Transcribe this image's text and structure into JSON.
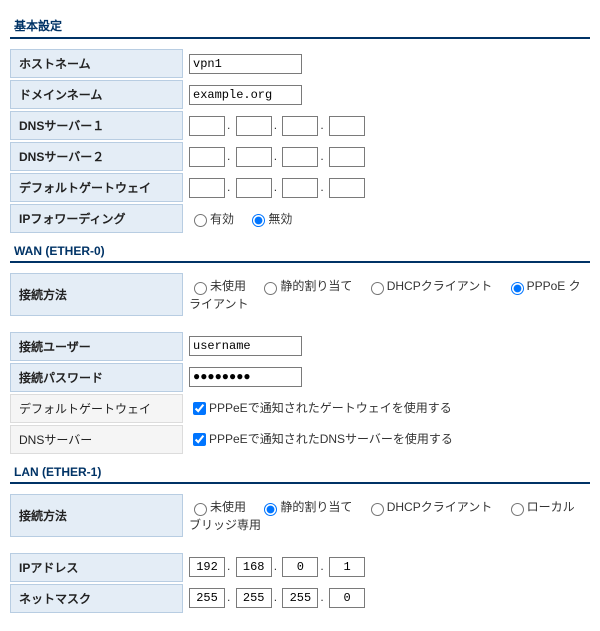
{
  "sections": {
    "basic": "基本設定",
    "wan": "WAN (ETHER-0)",
    "lan": "LAN (ETHER-1)"
  },
  "basic": {
    "hostname_label": "ホストネーム",
    "hostname": "vpn1",
    "domain_label": "ドメインネーム",
    "domain": "example.org",
    "dns1_label": "DNSサーバー１",
    "dns1": [
      "",
      "",
      "",
      ""
    ],
    "dns2_label": "DNSサーバー２",
    "dns2": [
      "",
      "",
      "",
      ""
    ],
    "gw_label": "デフォルトゲートウェイ",
    "gw": [
      "",
      "",
      "",
      ""
    ],
    "ipfw_label": "IPフォワーディング",
    "ipfw_enable": "有効",
    "ipfw_disable": "無効"
  },
  "wan": {
    "method_label": "接続方法",
    "method_unused": "未使用",
    "method_static": "静的割り当て",
    "method_dhcp": "DHCPクライアント",
    "method_pppoe": "PPPoE クライアント",
    "user_label": "接続ユーザー",
    "user": "username",
    "pass_label": "接続パスワード",
    "pass": "●●●●●●●●",
    "gw_label": "デフォルトゲートウェイ",
    "gw_check": "PPPeEで通知されたゲートウェイを使用する",
    "dns_label": "DNSサーバー",
    "dns_check": "PPPeEで通知されたDNSサーバーを使用する"
  },
  "lan": {
    "method_label": "接続方法",
    "method_unused": "未使用",
    "method_static": "静的割り当て",
    "method_dhcp": "DHCPクライアント",
    "method_bridge": "ローカルブリッジ専用",
    "ip_label": "IPアドレス",
    "ip": [
      "192",
      "168",
      "0",
      "1"
    ],
    "mask_label": "ネットマスク",
    "mask": [
      "255",
      "255",
      "255",
      "0"
    ]
  }
}
